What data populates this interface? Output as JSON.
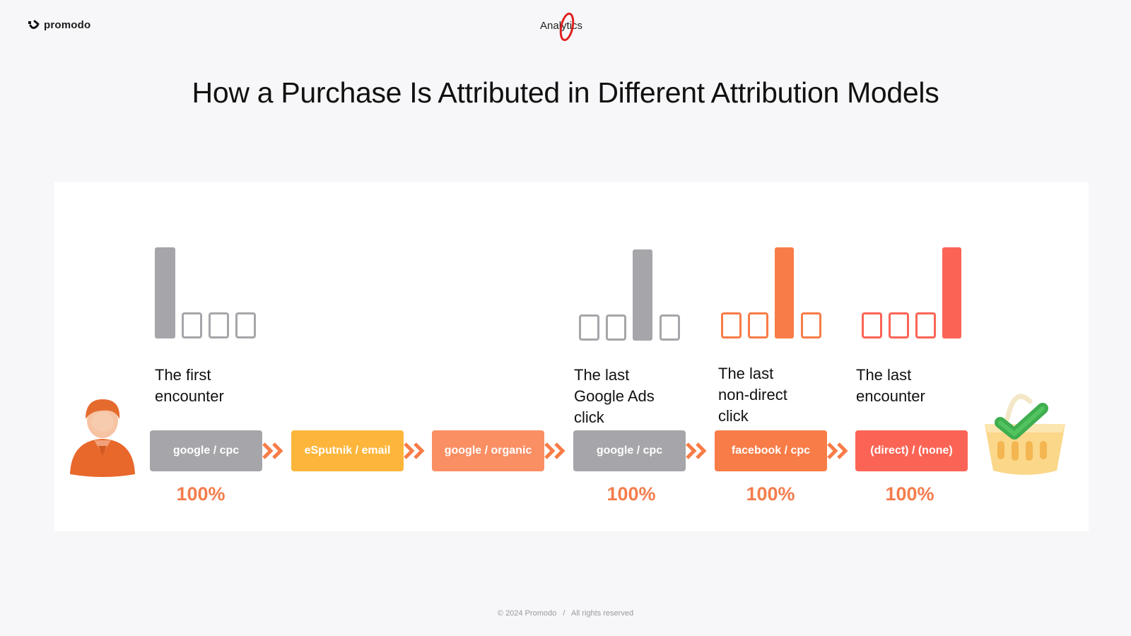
{
  "header": {
    "logo_text": "promodo",
    "brand_text": "Analytics"
  },
  "title": "How a Purchase Is Attributed in Different Attribution Models",
  "colors": {
    "gray": "#a6a6aa",
    "yellow": "#fdb63b",
    "light_orange": "#fa8f64",
    "orange": "#f87c47",
    "red": "#fb6455",
    "pct": "#f47c4c"
  },
  "channels": [
    {
      "label": "google / cpc",
      "color": "#a6a6aa"
    },
    {
      "label": "eSputnik / email",
      "color": "#fdb63b"
    },
    {
      "label": "google / organic",
      "color": "#fa8f64"
    },
    {
      "label": "google / cpc",
      "color": "#a6a6aa"
    },
    {
      "label": "facebook / cpc",
      "color": "#f87c47"
    },
    {
      "label": "(direct) / (none)",
      "color": "#fb6455"
    }
  ],
  "models": [
    {
      "label_lines": [
        "The first",
        "encounter"
      ],
      "credited_position": 1,
      "percent": "100%",
      "color": "#a6a6aa"
    },
    {
      "label_lines": [
        "The last",
        "Google Ads",
        "click"
      ],
      "credited_position": 3,
      "percent": "100%",
      "color": "#a6a6aa"
    },
    {
      "label_lines": [
        "The last",
        "non-direct",
        "click"
      ],
      "credited_position": 3,
      "percent": "100%",
      "color": "#f87c47"
    },
    {
      "label_lines": [
        "The last",
        "encounter"
      ],
      "credited_position": 4,
      "percent": "100%",
      "color": "#fb6455"
    }
  ],
  "footer": {
    "copyright": "© 2024 Promodo",
    "separator": "/",
    "rights": "All rights reserved"
  }
}
